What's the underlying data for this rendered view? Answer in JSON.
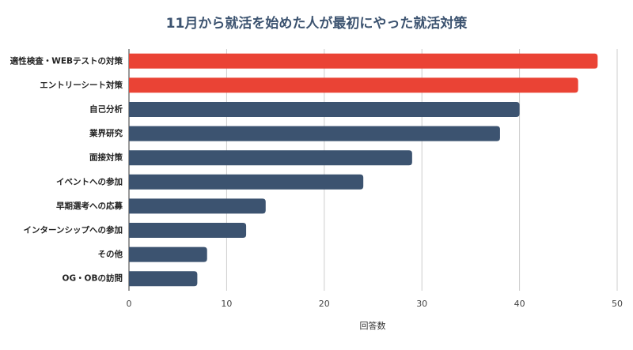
{
  "chart_data": {
    "type": "bar",
    "orientation": "horizontal",
    "title": "11月から就活を始めた人が最初にやった就活対策",
    "xlabel": "回答数",
    "categories": [
      "適性検査・WEBテストの対策",
      "エントリーシート対策",
      "自己分析",
      "業界研究",
      "面接対策",
      "イベントへの参加",
      "早期選考への応募",
      "インターンシップへの参加",
      "その他",
      "OG・OBの訪問"
    ],
    "values": [
      48,
      46,
      40,
      38,
      29,
      24,
      14,
      12,
      8,
      7
    ],
    "colors": [
      "#ea4335",
      "#ea4335",
      "#3c5370",
      "#3c5370",
      "#3c5370",
      "#3c5370",
      "#3c5370",
      "#3c5370",
      "#3c5370",
      "#3c5370"
    ],
    "xlim": [
      0,
      50
    ],
    "xticks": [
      0,
      10,
      20,
      30,
      40,
      50
    ],
    "grid": true
  }
}
